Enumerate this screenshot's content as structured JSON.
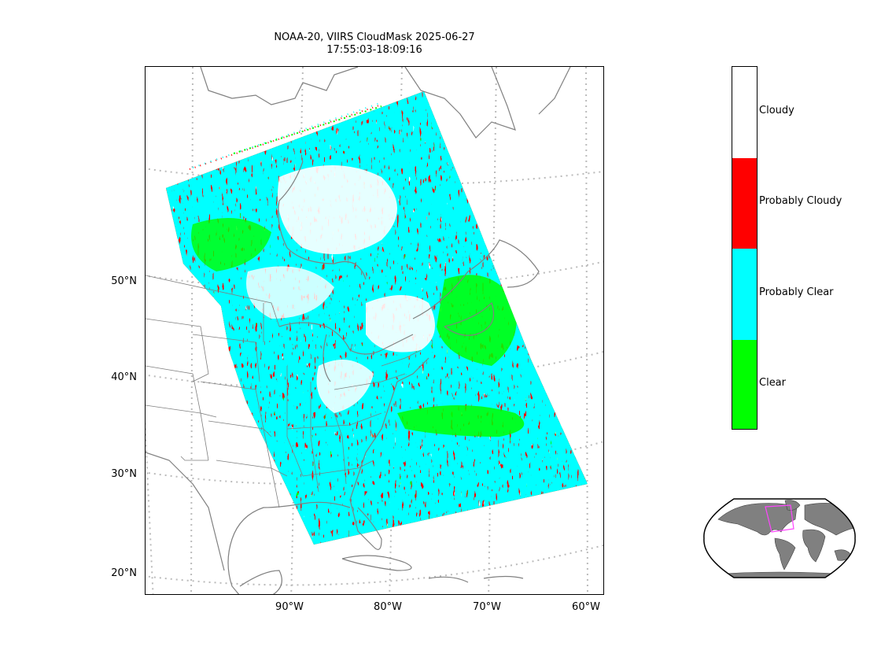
{
  "title": {
    "line1": "NOAA-20, VIIRS CloudMask 2025-06-27",
    "line2": "17:55:03-18:09:16"
  },
  "map": {
    "projection": "lambert-conformal",
    "gridlines": "dotted-gray",
    "lat_labels": [
      "50°N",
      "40°N",
      "30°N",
      "20°N"
    ],
    "lon_labels": [
      "90°W",
      "80°W",
      "70°W",
      "60°W"
    ],
    "land_outline_color": "#808080",
    "state_border_color": "#808080"
  },
  "legend": {
    "type": "categorical-colorbar",
    "categories": [
      {
        "label": "Cloudy",
        "color": "#ffffff"
      },
      {
        "label": "Probably Cloudy",
        "color": "#ff0000"
      },
      {
        "label": "Probably Clear",
        "color": "#00ffff"
      },
      {
        "label": "Clear",
        "color": "#00ff00"
      }
    ]
  },
  "inset": {
    "type": "world-locator-map",
    "land_color": "#808080",
    "highlight_color": "#ff44ff"
  }
}
